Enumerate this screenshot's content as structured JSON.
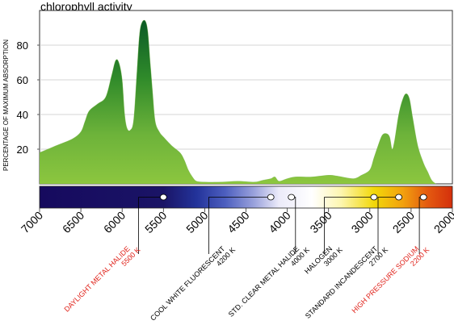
{
  "chart_data": {
    "type": "area",
    "title": "chlorophyll activity",
    "ylabel": "PERCENTAGE OF MAXIMUM ABSORPTION",
    "xlabel": "",
    "xlim": [
      7000,
      2000
    ],
    "ylim": [
      0,
      100
    ],
    "y_ticks": [
      20,
      40,
      60,
      80
    ],
    "x_ticks": [
      7000,
      6500,
      6000,
      5500,
      5000,
      4500,
      4000,
      3500,
      3000,
      2500,
      2000
    ],
    "grid": true,
    "series": [
      {
        "values": [
          [
            7000,
            18
          ],
          [
            6800,
            22
          ],
          [
            6600,
            26
          ],
          [
            6500,
            30
          ],
          [
            6450,
            36
          ],
          [
            6400,
            42
          ],
          [
            6300,
            46
          ],
          [
            6200,
            50
          ],
          [
            6130,
            62
          ],
          [
            6080,
            71
          ],
          [
            6040,
            70
          ],
          [
            6000,
            60
          ],
          [
            5970,
            40
          ],
          [
            5940,
            32
          ],
          [
            5900,
            31
          ],
          [
            5860,
            37
          ],
          [
            5820,
            65
          ],
          [
            5790,
            86
          ],
          [
            5760,
            93
          ],
          [
            5720,
            94
          ],
          [
            5690,
            88
          ],
          [
            5660,
            70
          ],
          [
            5630,
            52
          ],
          [
            5600,
            36
          ],
          [
            5550,
            30
          ],
          [
            5500,
            27
          ],
          [
            5400,
            22
          ],
          [
            5300,
            18
          ],
          [
            5250,
            14
          ],
          [
            5200,
            8
          ],
          [
            5150,
            4
          ],
          [
            5100,
            1.5
          ],
          [
            5000,
            1
          ],
          [
            4800,
            1
          ],
          [
            4600,
            1.5
          ],
          [
            4400,
            1
          ],
          [
            4300,
            2
          ],
          [
            4200,
            3
          ],
          [
            4150,
            4
          ],
          [
            4100,
            1.5
          ],
          [
            4000,
            3
          ],
          [
            3900,
            4
          ],
          [
            3700,
            4
          ],
          [
            3500,
            5
          ],
          [
            3400,
            4.5
          ],
          [
            3200,
            3
          ],
          [
            3100,
            5
          ],
          [
            3000,
            8
          ],
          [
            2950,
            15
          ],
          [
            2900,
            22
          ],
          [
            2850,
            28
          ],
          [
            2800,
            29
          ],
          [
            2760,
            27
          ],
          [
            2730,
            20
          ],
          [
            2700,
            25
          ],
          [
            2650,
            40
          ],
          [
            2600,
            49
          ],
          [
            2560,
            52
          ],
          [
            2520,
            49
          ],
          [
            2480,
            38
          ],
          [
            2420,
            22
          ],
          [
            2350,
            12
          ],
          [
            2300,
            7
          ],
          [
            2250,
            2
          ],
          [
            2200,
            0
          ]
        ]
      }
    ],
    "spectrum_bar": {
      "markers": [
        {
          "name": "DAYLIGHT METAL HALIDE",
          "temp": "5500 K",
          "highlight": true,
          "color": "#e0231b",
          "wavelength": 5500,
          "dot_x": 5500,
          "label_x": 5900,
          "line_start_x": 5800
        },
        {
          "name": "COOL WHITE FLUORESCENT",
          "temp": "4200 K",
          "highlight": false,
          "color": "#000000",
          "wavelength": 4200,
          "dot_x": 4200,
          "label_x": 4750,
          "line_start_x": 4950
        },
        {
          "name": "STD. CLEAR METAL HALIDE",
          "temp": "4000 K",
          "highlight": false,
          "color": "#000000",
          "wavelength": 4000,
          "dot_x": 3950,
          "label_x": 3850,
          "line_start_x": 3900
        },
        {
          "name": "HALOGEN",
          "temp": "3000 K",
          "highlight": false,
          "color": "#000000",
          "wavelength": 3000,
          "dot_x": 2950,
          "label_x": 3450,
          "line_start_x": 3550
        },
        {
          "name": "STANDARD INCANDESCENT",
          "temp": "2700 K",
          "highlight": false,
          "color": "#000000",
          "wavelength": 2700,
          "dot_x": 2650,
          "label_x": 2900,
          "line_start_x": 2900
        },
        {
          "name": "HIGH PRESSURE SODIUM",
          "temp": "2200 K",
          "highlight": true,
          "color": "#e0231b",
          "wavelength": 2200,
          "dot_x": 2350,
          "label_x": 2400,
          "line_start_x": 2400
        }
      ]
    }
  }
}
